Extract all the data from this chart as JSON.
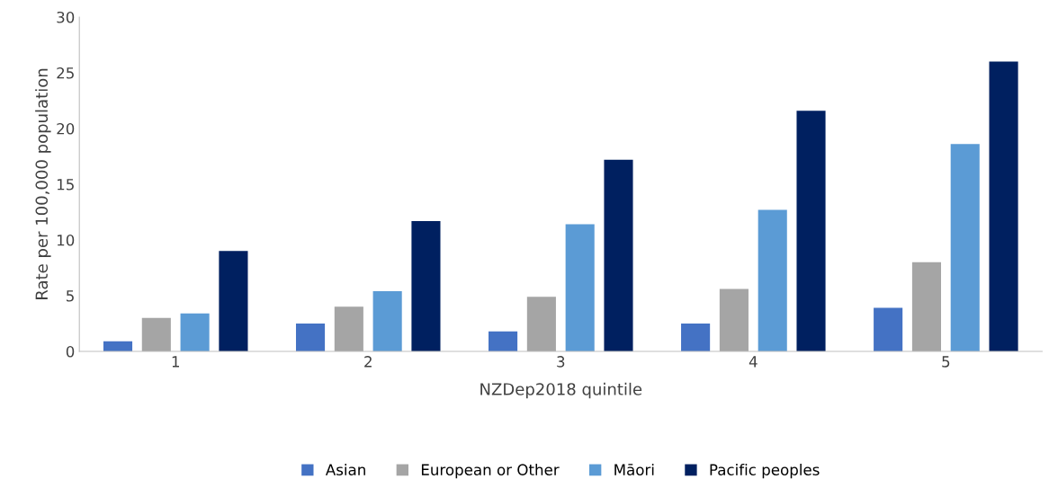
{
  "chart_data": {
    "type": "bar",
    "xlabel": "NZDep2018 quintile",
    "ylabel": "Rate per 100,000 population",
    "categories": [
      "1",
      "2",
      "3",
      "4",
      "5"
    ],
    "series": [
      {
        "name": "Asian",
        "color": "#4472c4",
        "values": [
          0.9,
          2.5,
          1.8,
          2.5,
          3.9
        ]
      },
      {
        "name": "European or Other",
        "color": "#a5a5a5",
        "values": [
          3.0,
          4.0,
          4.9,
          5.6,
          8.0
        ]
      },
      {
        "name": "Māori",
        "color": "#5b9bd5",
        "values": [
          3.4,
          5.4,
          11.4,
          12.7,
          18.6
        ]
      },
      {
        "name": "Pacific peoples",
        "color": "#002060",
        "values": [
          9.0,
          11.7,
          17.2,
          21.6,
          26.0
        ]
      }
    ],
    "ylim": [
      0,
      30
    ],
    "yticks": [
      0,
      5,
      10,
      15,
      20,
      25,
      30
    ],
    "grid": false,
    "legend": "bottom"
  }
}
